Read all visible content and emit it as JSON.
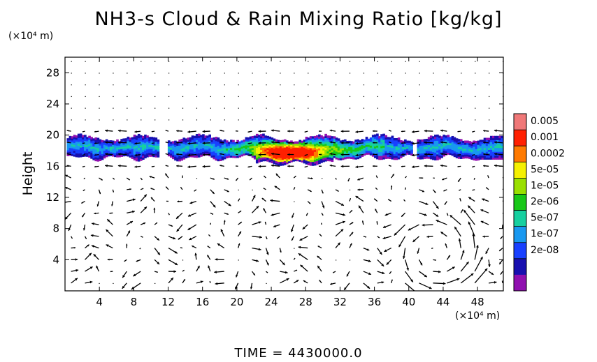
{
  "chart_data": {
    "type": "heatmap",
    "title": "NH3-s Cloud & Rain Mixing Ratio [kg/kg]",
    "xlabel": "",
    "ylabel": "Height",
    "x_multiplier": "(×10⁴ m)",
    "y_multiplier": "(×10⁴ m)",
    "xlim": [
      0,
      51
    ],
    "ylim": [
      0,
      30
    ],
    "xticks": [
      "4",
      "8",
      "12",
      "16",
      "20",
      "24",
      "28",
      "32",
      "36",
      "40",
      "44",
      "48"
    ],
    "yticks": [
      "4",
      "8",
      "12",
      "16",
      "20",
      "24",
      "28"
    ],
    "colorbar": {
      "labels": [
        "0.005",
        "0.001",
        "0.0002",
        "5e-05",
        "1e-05",
        "2e-06",
        "5e-07",
        "1e-07",
        "2e-08"
      ],
      "colors": [
        "#f07878",
        "#ff2000",
        "#ff7a00",
        "#f5f000",
        "#9ae000",
        "#18c818",
        "#16d0a0",
        "#1898f0",
        "#1840ff",
        "#1810b0",
        "#9010b0"
      ]
    },
    "cloud_layer": {
      "y_bottom": 16.5,
      "y_top": 20,
      "peak_x": 26,
      "peak_y": 17.5
    },
    "wind_vectors": "velocity arrows on regular grid",
    "time_label": "TIME = 4430000.0"
  }
}
